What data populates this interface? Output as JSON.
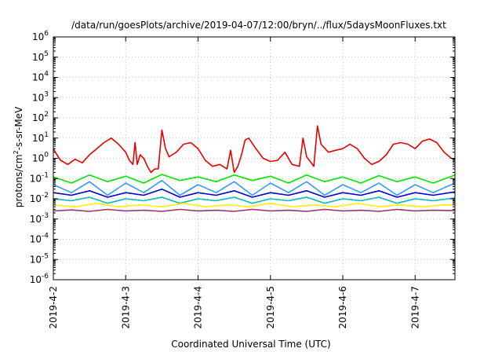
{
  "chart_data": {
    "type": "line",
    "title": "/data/run/goesPlots/archive/2019-04-07/12:00/bryn/../flux/5daysMoonFluxes.txt",
    "xlabel": "Coordinated Universal Time (UTC)",
    "ylabel": "protons/cm2-s-sr-MeV",
    "ylabel_parts": {
      "pre": "protons/cm",
      "sup": "2",
      "post": "-s-sr-MeV"
    },
    "yscale": "log",
    "ylim_exp": [
      -6,
      6
    ],
    "ytick_exps": [
      "-6",
      "-5",
      "-4",
      "-3",
      "-2",
      "-1",
      "0",
      "1",
      "2",
      "3",
      "4",
      "5",
      "6"
    ],
    "ytick_base": "10",
    "xlim_days": [
      0,
      5.55
    ],
    "xticks": [
      {
        "label": "2019-4-2",
        "day": 0
      },
      {
        "label": "2019-4-3",
        "day": 1
      },
      {
        "label": "2019-4-4",
        "day": 2
      },
      {
        "label": "2019-4-5",
        "day": 3
      },
      {
        "label": "2019-4-6",
        "day": 4
      },
      {
        "label": "2019-4-7",
        "day": 5
      }
    ],
    "grid": true,
    "series": [
      {
        "color": "#e60000",
        "x": [
          0,
          0.05,
          0.1,
          0.2,
          0.3,
          0.4,
          0.5,
          0.6,
          0.7,
          0.8,
          0.9,
          1.0,
          1.05,
          1.1,
          1.13,
          1.16,
          1.2,
          1.25,
          1.3,
          1.35,
          1.4,
          1.45,
          1.5,
          1.55,
          1.6,
          1.7,
          1.8,
          1.9,
          2.0,
          2.1,
          2.2,
          2.3,
          2.4,
          2.45,
          2.5,
          2.55,
          2.6,
          2.65,
          2.7,
          2.8,
          2.9,
          3.0,
          3.1,
          3.2,
          3.3,
          3.4,
          3.45,
          3.5,
          3.55,
          3.6,
          3.65,
          3.7,
          3.8,
          3.9,
          4.0,
          4.1,
          4.2,
          4.3,
          4.4,
          4.5,
          4.6,
          4.7,
          4.8,
          4.9,
          5.0,
          5.1,
          5.2,
          5.3,
          5.4,
          5.5,
          5.55
        ],
        "y": [
          3,
          1.5,
          0.8,
          0.5,
          0.9,
          0.6,
          1.5,
          3,
          6,
          10,
          5,
          2,
          0.8,
          0.5,
          6,
          0.5,
          1.5,
          1,
          0.4,
          0.2,
          0.3,
          0.3,
          25,
          3,
          1.2,
          2,
          5,
          6,
          3,
          0.8,
          0.4,
          0.5,
          0.3,
          2.5,
          0.2,
          0.4,
          1.5,
          8,
          10,
          3,
          1,
          0.7,
          0.8,
          2,
          0.5,
          0.4,
          10,
          1.2,
          0.7,
          0.4,
          40,
          5,
          2,
          2.5,
          3,
          5,
          3,
          1,
          0.5,
          0.7,
          1.5,
          5,
          6,
          5,
          3,
          7,
          9,
          6,
          2,
          1,
          0.9
        ]
      },
      {
        "color": "#00e600",
        "x": [
          0,
          0.25,
          0.5,
          0.75,
          1.0,
          1.25,
          1.5,
          1.75,
          2.0,
          2.25,
          2.5,
          2.75,
          3.0,
          3.25,
          3.5,
          3.75,
          4.0,
          4.25,
          4.5,
          4.75,
          5.0,
          5.25,
          5.55
        ],
        "y": [
          0.12,
          0.06,
          0.15,
          0.07,
          0.13,
          0.06,
          0.16,
          0.08,
          0.12,
          0.07,
          0.15,
          0.08,
          0.13,
          0.06,
          0.15,
          0.07,
          0.12,
          0.06,
          0.14,
          0.07,
          0.12,
          0.06,
          0.15
        ]
      },
      {
        "color": "#3399ff",
        "x": [
          0,
          0.25,
          0.5,
          0.75,
          1.0,
          1.25,
          1.5,
          1.75,
          2.0,
          2.25,
          2.5,
          2.75,
          3.0,
          3.25,
          3.5,
          3.75,
          4.0,
          4.25,
          4.5,
          4.75,
          5.0,
          5.25,
          5.55
        ],
        "y": [
          0.05,
          0.02,
          0.07,
          0.015,
          0.06,
          0.02,
          0.08,
          0.015,
          0.05,
          0.02,
          0.07,
          0.015,
          0.06,
          0.02,
          0.07,
          0.015,
          0.05,
          0.02,
          0.06,
          0.015,
          0.05,
          0.02,
          0.06
        ]
      },
      {
        "color": "#0000cc",
        "x": [
          0,
          0.25,
          0.5,
          0.75,
          1.0,
          1.25,
          1.5,
          1.75,
          2.0,
          2.25,
          2.5,
          2.75,
          3.0,
          3.25,
          3.5,
          3.75,
          4.0,
          4.25,
          4.5,
          4.75,
          5.0,
          5.25,
          5.55
        ],
        "y": [
          0.02,
          0.015,
          0.025,
          0.012,
          0.02,
          0.015,
          0.03,
          0.012,
          0.02,
          0.015,
          0.025,
          0.012,
          0.02,
          0.015,
          0.025,
          0.012,
          0.02,
          0.015,
          0.025,
          0.012,
          0.02,
          0.015,
          0.022
        ]
      },
      {
        "color": "#00bbbb",
        "x": [
          0,
          0.25,
          0.5,
          0.75,
          1.0,
          1.25,
          1.5,
          1.75,
          2.0,
          2.25,
          2.5,
          2.75,
          3.0,
          3.25,
          3.5,
          3.75,
          4.0,
          4.25,
          4.5,
          4.75,
          5.0,
          5.25,
          5.55
        ],
        "y": [
          0.01,
          0.008,
          0.012,
          0.006,
          0.01,
          0.008,
          0.012,
          0.006,
          0.01,
          0.008,
          0.012,
          0.006,
          0.01,
          0.008,
          0.012,
          0.006,
          0.01,
          0.008,
          0.012,
          0.006,
          0.01,
          0.008,
          0.011
        ]
      },
      {
        "color": "#ffee00",
        "x": [
          0,
          0.3,
          0.6,
          0.9,
          1.2,
          1.5,
          1.8,
          2.1,
          2.4,
          2.7,
          3.0,
          3.3,
          3.6,
          3.9,
          4.2,
          4.5,
          4.8,
          5.1,
          5.4,
          5.55
        ],
        "y": [
          0.005,
          0.004,
          0.006,
          0.004,
          0.005,
          0.004,
          0.006,
          0.004,
          0.005,
          0.004,
          0.006,
          0.004,
          0.005,
          0.004,
          0.006,
          0.004,
          0.005,
          0.004,
          0.005,
          0.005
        ]
      },
      {
        "color": "#993366",
        "x": [
          0,
          0.25,
          0.5,
          0.75,
          1.0,
          1.25,
          1.5,
          1.75,
          2.0,
          2.25,
          2.5,
          2.75,
          3.0,
          3.25,
          3.5,
          3.75,
          4.0,
          4.25,
          4.5,
          4.75,
          5.0,
          5.25,
          5.55
        ],
        "y": [
          0.0025,
          0.0028,
          0.0024,
          0.003,
          0.0025,
          0.0027,
          0.0024,
          0.003,
          0.0025,
          0.0027,
          0.0024,
          0.003,
          0.0025,
          0.0027,
          0.0024,
          0.003,
          0.0025,
          0.0027,
          0.0024,
          0.003,
          0.0025,
          0.0027,
          0.0026
        ]
      }
    ]
  }
}
